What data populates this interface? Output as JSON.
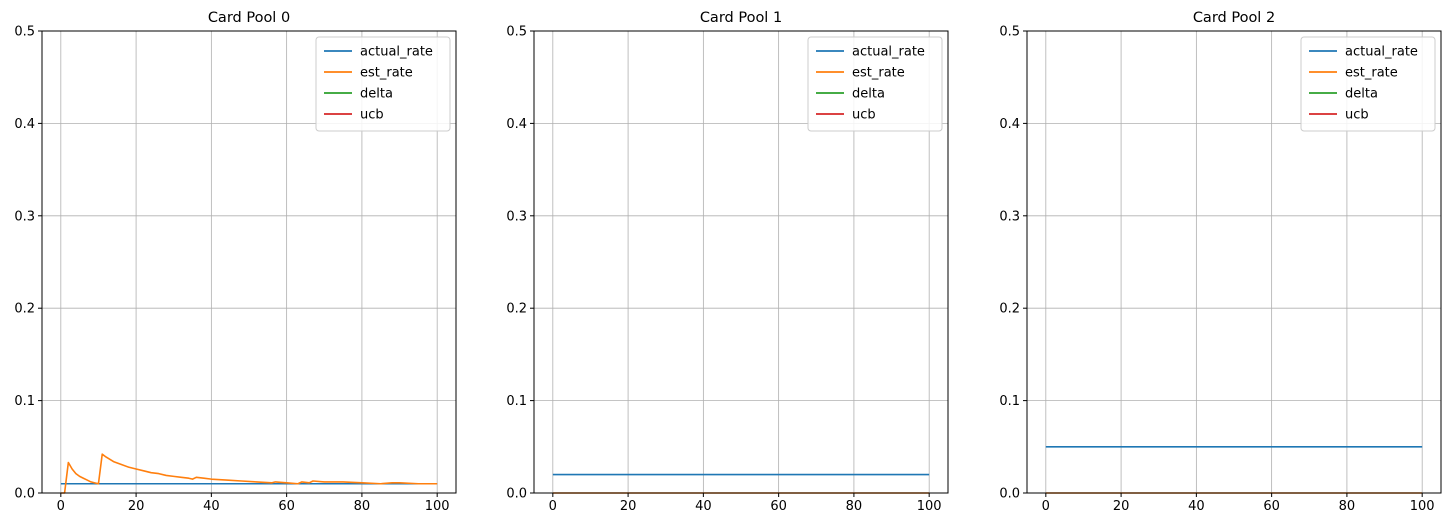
{
  "chart_data": [
    {
      "type": "line",
      "title": "Card Pool 0",
      "xlabel": "",
      "ylabel": "",
      "xlim": [
        -5,
        105
      ],
      "ylim": [
        0,
        0.5
      ],
      "xticks": [
        0,
        20,
        40,
        60,
        80,
        100
      ],
      "yticks": [
        0.0,
        0.1,
        0.2,
        0.3,
        0.4,
        0.5
      ],
      "grid": true,
      "legend_position": "top-right",
      "series": [
        {
          "name": "actual_rate",
          "color": "#1f77b4",
          "x": [
            0,
            100
          ],
          "y": [
            0.01,
            0.01
          ]
        },
        {
          "name": "est_rate",
          "color": "#ff7f0e",
          "x": [
            0,
            1,
            2,
            3,
            4,
            5,
            6,
            7,
            8,
            9,
            10,
            11,
            12,
            14,
            16,
            18,
            20,
            22,
            24,
            26,
            28,
            30,
            32,
            34,
            35,
            36,
            38,
            40,
            44,
            48,
            52,
            56,
            57,
            60,
            63,
            64,
            66,
            67,
            70,
            75,
            80,
            85,
            88,
            90,
            95,
            100
          ],
          "y": [
            0,
            0,
            0.033,
            0.026,
            0.021,
            0.018,
            0.016,
            0.014,
            0.012,
            0.011,
            0.01,
            0.042,
            0.039,
            0.034,
            0.031,
            0.028,
            0.026,
            0.024,
            0.022,
            0.021,
            0.019,
            0.018,
            0.017,
            0.016,
            0.015,
            0.017,
            0.016,
            0.015,
            0.014,
            0.013,
            0.012,
            0.011,
            0.012,
            0.011,
            0.01,
            0.012,
            0.011,
            0.013,
            0.012,
            0.012,
            0.011,
            0.01,
            0.011,
            0.011,
            0.01,
            0.01
          ]
        },
        {
          "name": "delta",
          "color": "#2ca02c",
          "x": [],
          "y": []
        },
        {
          "name": "ucb",
          "color": "#d62728",
          "x": [],
          "y": []
        }
      ]
    },
    {
      "type": "line",
      "title": "Card Pool 1",
      "xlabel": "",
      "ylabel": "",
      "xlim": [
        -5,
        105
      ],
      "ylim": [
        0,
        0.5
      ],
      "xticks": [
        0,
        20,
        40,
        60,
        80,
        100
      ],
      "yticks": [
        0.0,
        0.1,
        0.2,
        0.3,
        0.4,
        0.5
      ],
      "grid": true,
      "legend_position": "top-right",
      "series": [
        {
          "name": "actual_rate",
          "color": "#1f77b4",
          "x": [
            0,
            100
          ],
          "y": [
            0.02,
            0.02
          ]
        },
        {
          "name": "est_rate",
          "color": "#ff7f0e",
          "x": [
            0,
            100
          ],
          "y": [
            0,
            0
          ]
        },
        {
          "name": "delta",
          "color": "#2ca02c",
          "x": [],
          "y": []
        },
        {
          "name": "ucb",
          "color": "#d62728",
          "x": [],
          "y": []
        }
      ]
    },
    {
      "type": "line",
      "title": "Card Pool 2",
      "xlabel": "",
      "ylabel": "",
      "xlim": [
        -5,
        105
      ],
      "ylim": [
        0,
        0.5
      ],
      "xticks": [
        0,
        20,
        40,
        60,
        80,
        100
      ],
      "yticks": [
        0.0,
        0.1,
        0.2,
        0.3,
        0.4,
        0.5
      ],
      "grid": true,
      "legend_position": "top-right",
      "series": [
        {
          "name": "actual_rate",
          "color": "#1f77b4",
          "x": [
            0,
            100
          ],
          "y": [
            0.05,
            0.05
          ]
        },
        {
          "name": "est_rate",
          "color": "#ff7f0e",
          "x": [
            0,
            100
          ],
          "y": [
            0,
            0
          ]
        },
        {
          "name": "delta",
          "color": "#2ca02c",
          "x": [],
          "y": []
        },
        {
          "name": "ucb",
          "color": "#d62728",
          "x": [],
          "y": []
        }
      ]
    }
  ]
}
